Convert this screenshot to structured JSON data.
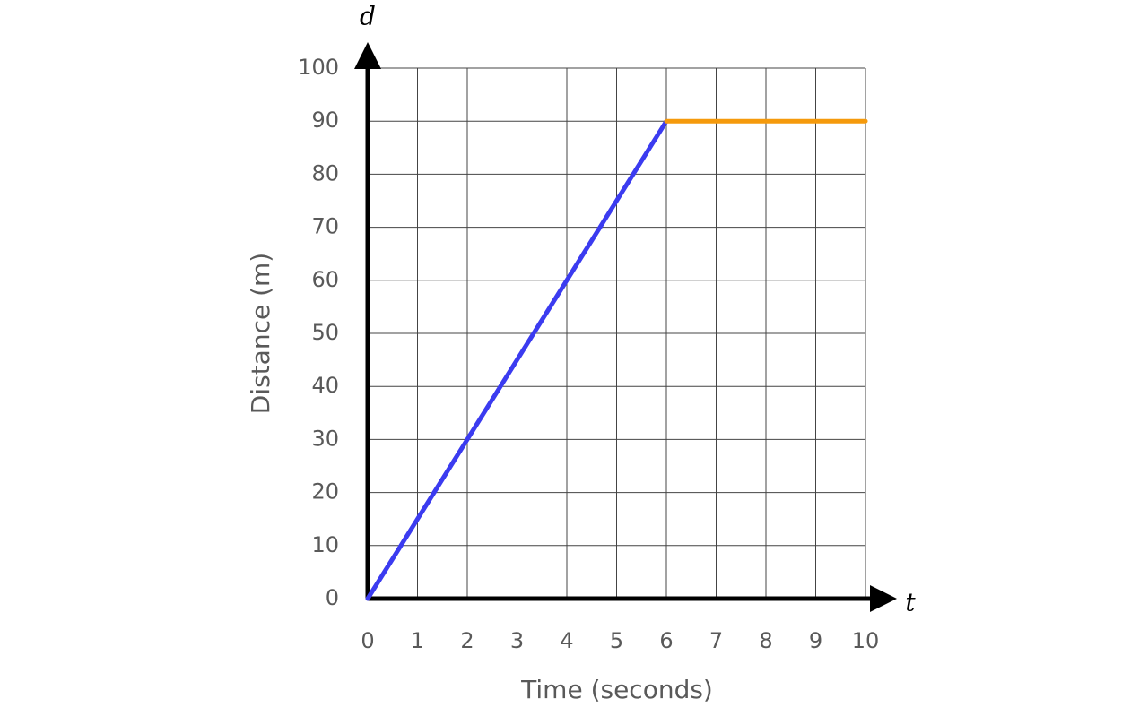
{
  "chart_data": {
    "type": "line",
    "x_label": "Time (seconds)",
    "y_label": "Distance (m)",
    "x_axis_symbol": "t",
    "y_axis_symbol": "d",
    "x": [
      0,
      6,
      10
    ],
    "series": [
      {
        "color": "#3b3bf0",
        "values": [
          0,
          90,
          null
        ]
      },
      {
        "color": "#f59a0c",
        "values": [
          null,
          90,
          90
        ]
      }
    ],
    "xlim": [
      0,
      10
    ],
    "ylim": [
      0,
      100
    ],
    "xticks": [
      0,
      1,
      2,
      3,
      4,
      5,
      6,
      7,
      8,
      9,
      10
    ],
    "yticks": [
      0,
      10,
      20,
      30,
      40,
      50,
      60,
      70,
      80,
      90,
      100
    ],
    "grid": true
  }
}
